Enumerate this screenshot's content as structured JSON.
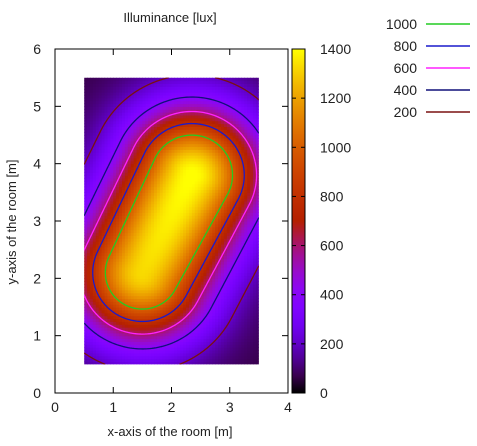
{
  "chart_data": {
    "type": "heatmap",
    "title": "Illuminance [lux]",
    "xlabel": "x-axis of the room [m]",
    "ylabel": "y-axis of the room [m]",
    "xlim": [
      0,
      4
    ],
    "ylim": [
      0,
      6
    ],
    "x_ticks": [
      "0",
      "1",
      "2",
      "3",
      "4"
    ],
    "y_ticks": [
      "0",
      "1",
      "2",
      "3",
      "4",
      "5",
      "6"
    ],
    "data_extent": {
      "x": [
        0.5,
        3.5
      ],
      "y": [
        0.5,
        5.5
      ]
    },
    "colorbar": {
      "range": [
        0,
        1400
      ],
      "ticks": [
        "0",
        "200",
        "400",
        "600",
        "800",
        "1000",
        "1200",
        "1400"
      ]
    },
    "peak": {
      "x": 2.35,
      "y": 3.8,
      "value": 1350
    },
    "contours": [
      {
        "level": 1000,
        "label": "1000",
        "color": "#22cc22"
      },
      {
        "level": 800,
        "label": "800",
        "color": "#1a1acc"
      },
      {
        "level": 600,
        "label": "600",
        "color": "#ff22ff"
      },
      {
        "level": 400,
        "label": "400",
        "color": "#10107a"
      },
      {
        "level": 200,
        "label": "200",
        "color": "#7a1010"
      }
    ],
    "grid": false,
    "legend_position": "top-right outside"
  }
}
